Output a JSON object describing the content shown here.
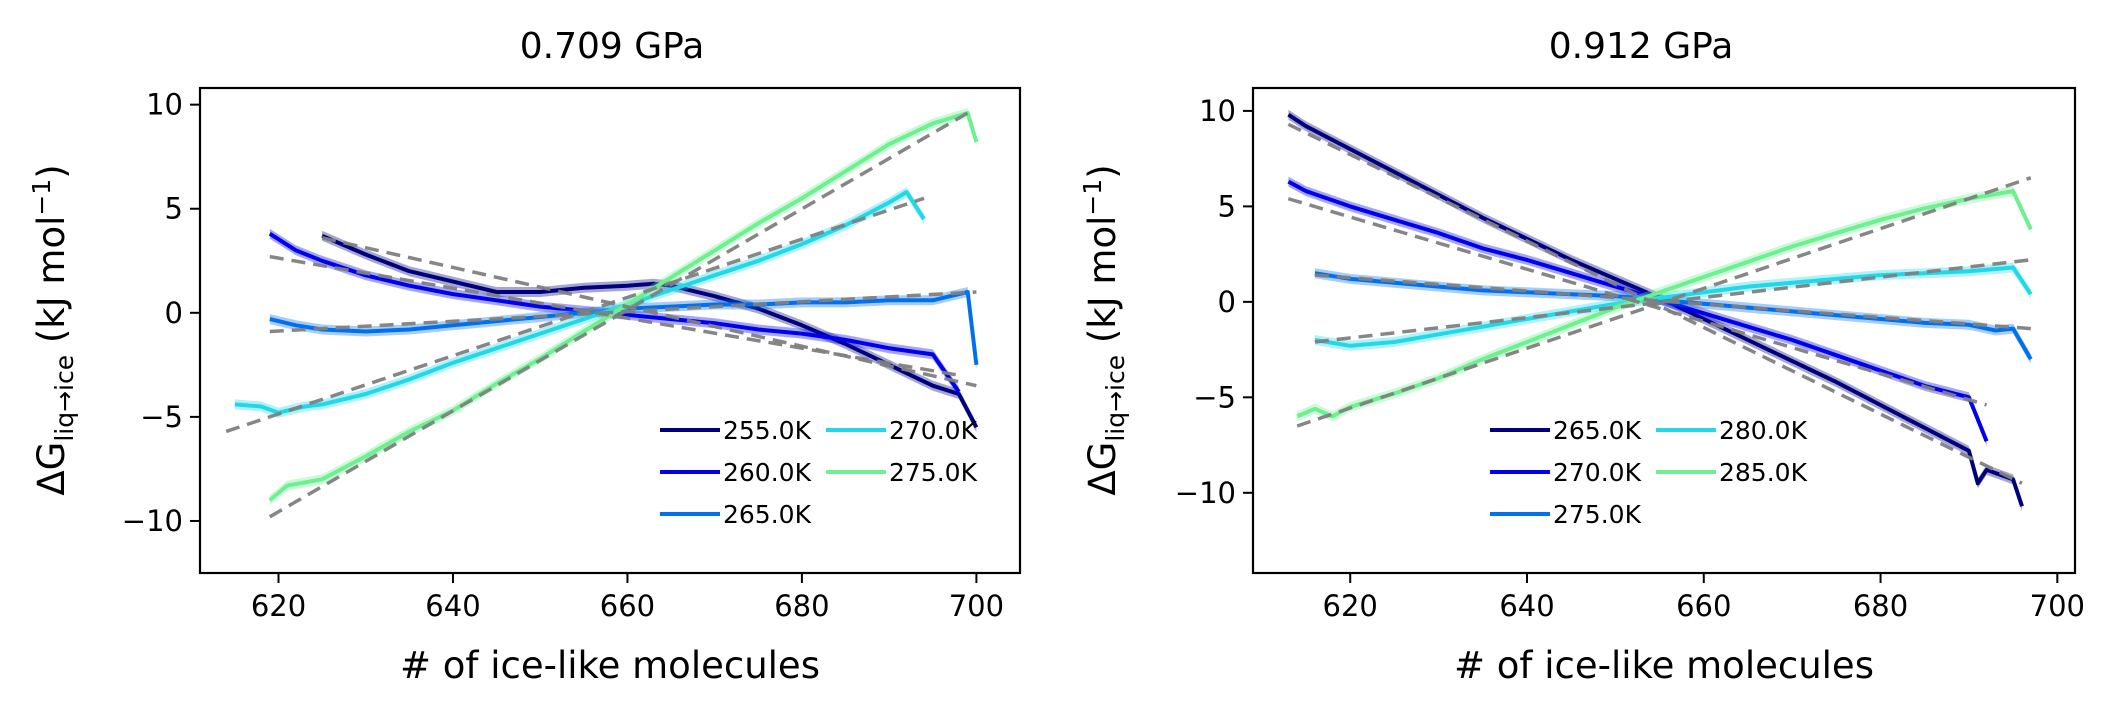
{
  "figure": {
    "panels": [
      {
        "title": "0.709 GPa",
        "ylabel_main": "ΔG",
        "ylabel_sub": "liq→ice",
        "ylabel_unit": " (kJ mol",
        "ylabel_exp": "−1",
        "ylabel_close": ")",
        "xlabel": "# of ice-like molecules"
      },
      {
        "title": "0.912 GPa",
        "ylabel_main": "ΔG",
        "ylabel_sub": "liq→ice",
        "ylabel_unit": " (kJ mol",
        "ylabel_exp": "−1",
        "ylabel_close": ")",
        "xlabel": "# of ice-like molecules"
      }
    ]
  },
  "chart_data": [
    {
      "type": "line",
      "title": "0.709 GPa",
      "xlabel": "# of ice-like molecules",
      "ylabel": "ΔG_liq→ice (kJ mol⁻¹)",
      "xlim": [
        611,
        705
      ],
      "ylim": [
        -12.5,
        10.8
      ],
      "xticks": [
        620,
        640,
        660,
        680,
        700
      ],
      "xtick_labels": [
        "620",
        "640",
        "660",
        "680",
        "700"
      ],
      "yticks": [
        10,
        5,
        0,
        -5,
        -10
      ],
      "ytick_labels": [
        "10",
        "5",
        "0",
        "−5",
        "−10"
      ],
      "grid": false,
      "legend_position": "lower-right",
      "legend_ncols": 2,
      "fit_line_color": "#808080",
      "series": [
        {
          "name": "255.0K",
          "color": "#00007f",
          "x": [
            625,
            630,
            635,
            640,
            645,
            650,
            655,
            660,
            663,
            665,
            670,
            675,
            680,
            685,
            690,
            695,
            698,
            700
          ],
          "y": [
            3.7,
            2.8,
            2.0,
            1.5,
            1.0,
            1.0,
            1.2,
            1.3,
            1.4,
            1.3,
            0.8,
            0.2,
            -0.6,
            -1.5,
            -2.5,
            -3.5,
            -3.9,
            -5.5
          ],
          "fit": [
            [
              625,
              3.6
            ],
            [
              700,
              -3.5
            ]
          ]
        },
        {
          "name": "260.0K",
          "color": "#0000ee",
          "x": [
            619,
            622,
            625,
            630,
            635,
            640,
            645,
            650,
            655,
            660,
            665,
            670,
            675,
            680,
            685,
            690,
            695,
            698
          ],
          "y": [
            3.8,
            3.0,
            2.5,
            1.8,
            1.3,
            0.9,
            0.6,
            0.3,
            0.1,
            -0.1,
            -0.3,
            -0.5,
            -0.8,
            -1.0,
            -1.3,
            -1.7,
            -2.0,
            -3.8
          ],
          "fit": [
            [
              619,
              2.7
            ],
            [
              698,
              -3.0
            ]
          ]
        },
        {
          "name": "265.0K",
          "color": "#0070ee",
          "x": [
            619,
            622,
            625,
            630,
            635,
            640,
            645,
            650,
            655,
            660,
            665,
            670,
            675,
            680,
            685,
            690,
            695,
            699,
            700
          ],
          "y": [
            -0.3,
            -0.6,
            -0.8,
            -0.9,
            -0.8,
            -0.6,
            -0.4,
            -0.2,
            0.0,
            0.2,
            0.3,
            0.4,
            0.4,
            0.5,
            0.5,
            0.6,
            0.6,
            1.0,
            -2.5
          ],
          "fit": [
            [
              619,
              -0.9
            ],
            [
              700,
              1.0
            ]
          ]
        },
        {
          "name": "270.0K",
          "color": "#20d8e8",
          "x": [
            615,
            618,
            620,
            623,
            625,
            630,
            635,
            640,
            645,
            650,
            655,
            660,
            665,
            670,
            675,
            680,
            685,
            690,
            692,
            694
          ],
          "y": [
            -4.4,
            -4.5,
            -4.8,
            -4.5,
            -4.4,
            -3.9,
            -3.2,
            -2.4,
            -1.7,
            -1.0,
            -0.3,
            0.4,
            1.1,
            1.8,
            2.5,
            3.3,
            4.2,
            5.3,
            5.8,
            4.5
          ],
          "fit": [
            [
              614,
              -5.7
            ],
            [
              694,
              5.5
            ]
          ]
        },
        {
          "name": "275.0K",
          "color": "#6cf090",
          "x": [
            619,
            621,
            625,
            630,
            635,
            640,
            645,
            650,
            655,
            660,
            665,
            670,
            675,
            680,
            685,
            690,
            695,
            699,
            700
          ],
          "y": [
            -9.0,
            -8.3,
            -8.0,
            -6.9,
            -5.7,
            -4.7,
            -3.4,
            -2.2,
            -0.9,
            0.4,
            1.7,
            3.0,
            4.3,
            5.5,
            6.8,
            8.1,
            9.1,
            9.6,
            8.2
          ],
          "fit": [
            [
              619,
              -9.8
            ],
            [
              699,
              9.6
            ]
          ]
        }
      ]
    },
    {
      "type": "line",
      "title": "0.912 GPa",
      "xlabel": "# of ice-like molecules",
      "ylabel": "ΔG_liq→ice (kJ mol⁻¹)",
      "xlim": [
        609,
        702
      ],
      "ylim": [
        -14.2,
        11.2
      ],
      "xticks": [
        620,
        640,
        660,
        680,
        700
      ],
      "xtick_labels": [
        "620",
        "640",
        "660",
        "680",
        "700"
      ],
      "yticks": [
        10,
        5,
        0,
        -5,
        -10
      ],
      "ytick_labels": [
        "10",
        "5",
        "0",
        "−5",
        "−10"
      ],
      "grid": false,
      "legend_position": "lower-center",
      "legend_ncols": 2,
      "fit_line_color": "#808080",
      "series": [
        {
          "name": "265.0K",
          "color": "#00007f",
          "x": [
            613,
            615,
            620,
            625,
            630,
            635,
            640,
            645,
            650,
            655,
            660,
            665,
            670,
            675,
            680,
            685,
            690,
            691,
            692,
            695,
            696
          ],
          "y": [
            9.8,
            9.2,
            8.0,
            6.8,
            5.6,
            4.4,
            3.3,
            2.2,
            1.2,
            0.2,
            -0.9,
            -2.0,
            -3.1,
            -4.2,
            -5.4,
            -6.6,
            -7.8,
            -9.5,
            -8.8,
            -9.3,
            -10.7
          ],
          "fit": [
            [
              613,
              9.3
            ],
            [
              696,
              -9.5
            ]
          ]
        },
        {
          "name": "270.0K",
          "color": "#0000ee",
          "x": [
            613,
            615,
            620,
            625,
            630,
            635,
            640,
            645,
            650,
            655,
            660,
            665,
            670,
            675,
            680,
            685,
            690,
            692
          ],
          "y": [
            6.3,
            5.8,
            5.0,
            4.3,
            3.6,
            2.8,
            2.2,
            1.5,
            0.8,
            0.1,
            -0.6,
            -1.3,
            -2.0,
            -2.8,
            -3.6,
            -4.4,
            -5.0,
            -7.3
          ],
          "fit": [
            [
              613,
              5.4
            ],
            [
              692,
              -5.4
            ]
          ]
        },
        {
          "name": "275.0K",
          "color": "#0070ee",
          "x": [
            616,
            620,
            625,
            630,
            635,
            640,
            645,
            650,
            655,
            660,
            665,
            670,
            675,
            680,
            685,
            690,
            693,
            695,
            697
          ],
          "y": [
            1.5,
            1.2,
            1.0,
            0.8,
            0.6,
            0.5,
            0.4,
            0.3,
            0.1,
            -0.1,
            -0.3,
            -0.5,
            -0.7,
            -0.9,
            -1.1,
            -1.2,
            -1.5,
            -1.4,
            -3.0
          ],
          "fit": [
            [
              616,
              1.4
            ],
            [
              697,
              -1.4
            ]
          ]
        },
        {
          "name": "280.0K",
          "color": "#20d8e8",
          "x": [
            616,
            620,
            625,
            630,
            635,
            640,
            645,
            650,
            655,
            660,
            665,
            670,
            675,
            680,
            685,
            690,
            695,
            697
          ],
          "y": [
            -2.0,
            -2.3,
            -2.1,
            -1.7,
            -1.3,
            -0.9,
            -0.5,
            -0.1,
            0.2,
            0.5,
            0.8,
            1.0,
            1.2,
            1.4,
            1.5,
            1.6,
            1.8,
            0.4
          ],
          "fit": [
            [
              616,
              -2.1
            ],
            [
              697,
              2.2
            ]
          ]
        },
        {
          "name": "285.0K",
          "color": "#6cf090",
          "x": [
            614,
            616,
            618,
            620,
            625,
            630,
            635,
            640,
            645,
            650,
            655,
            660,
            665,
            670,
            675,
            680,
            685,
            690,
            695,
            697
          ],
          "y": [
            -6.0,
            -5.6,
            -6.0,
            -5.5,
            -4.8,
            -4.0,
            -3.0,
            -2.1,
            -1.2,
            -0.3,
            0.5,
            1.3,
            2.1,
            2.9,
            3.6,
            4.3,
            4.9,
            5.4,
            5.8,
            3.8
          ],
          "fit": [
            [
              614,
              -6.5
            ],
            [
              697,
              6.5
            ]
          ]
        }
      ]
    }
  ]
}
